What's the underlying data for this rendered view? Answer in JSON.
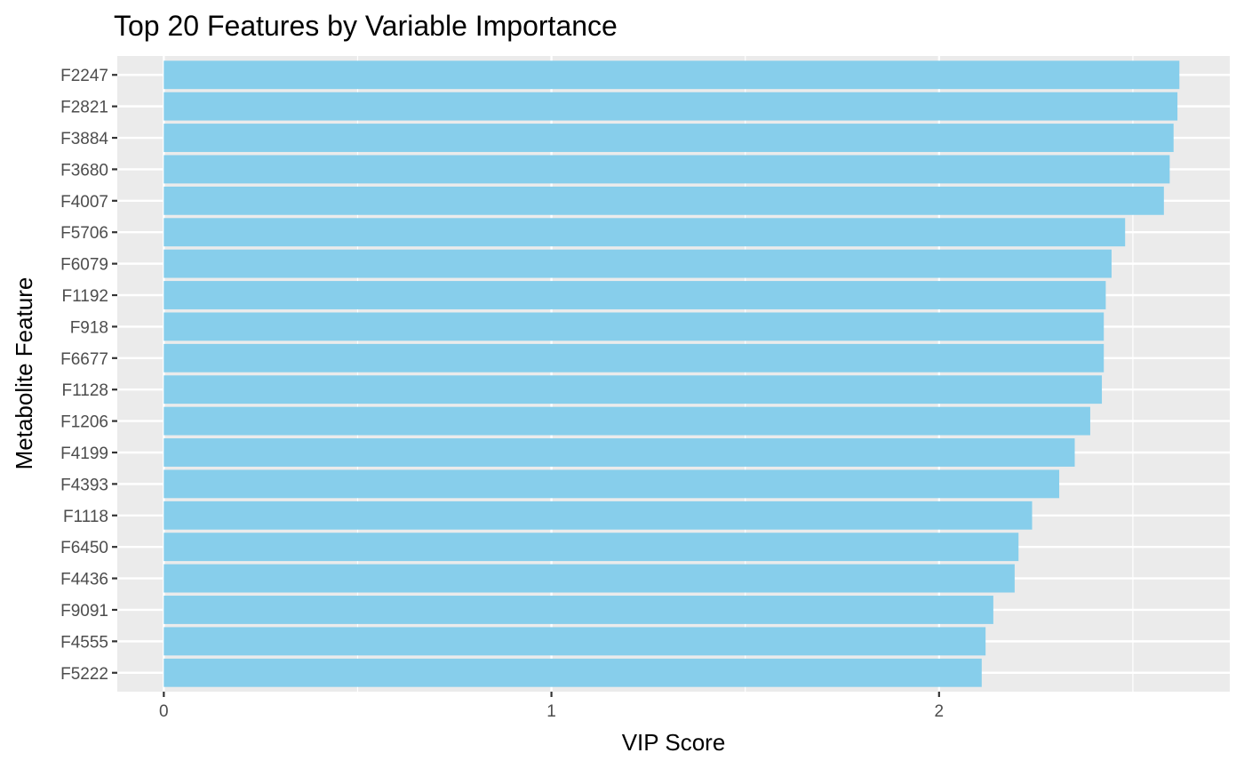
{
  "chart_data": {
    "type": "bar",
    "orientation": "horizontal",
    "title": "Top 20 Features by Variable Importance",
    "xlabel": "VIP Score",
    "ylabel": "Metabolite Feature",
    "xlim": [
      -0.12,
      2.75
    ],
    "xticks": [
      0,
      1,
      2
    ],
    "grid": true,
    "bar_color": "#87CEEB",
    "panel_color": "#EBEBEB",
    "categories": [
      "F2247",
      "F2821",
      "F3884",
      "F3680",
      "F4007",
      "F5706",
      "F6079",
      "F1192",
      "F918",
      "F6677",
      "F1128",
      "F1206",
      "F4199",
      "F4393",
      "F1118",
      "F6450",
      "F4436",
      "F9091",
      "F4555",
      "F5222"
    ],
    "values": [
      2.62,
      2.615,
      2.605,
      2.595,
      2.58,
      2.48,
      2.445,
      2.43,
      2.425,
      2.425,
      2.42,
      2.39,
      2.35,
      2.31,
      2.24,
      2.205,
      2.195,
      2.14,
      2.12,
      2.11
    ]
  }
}
